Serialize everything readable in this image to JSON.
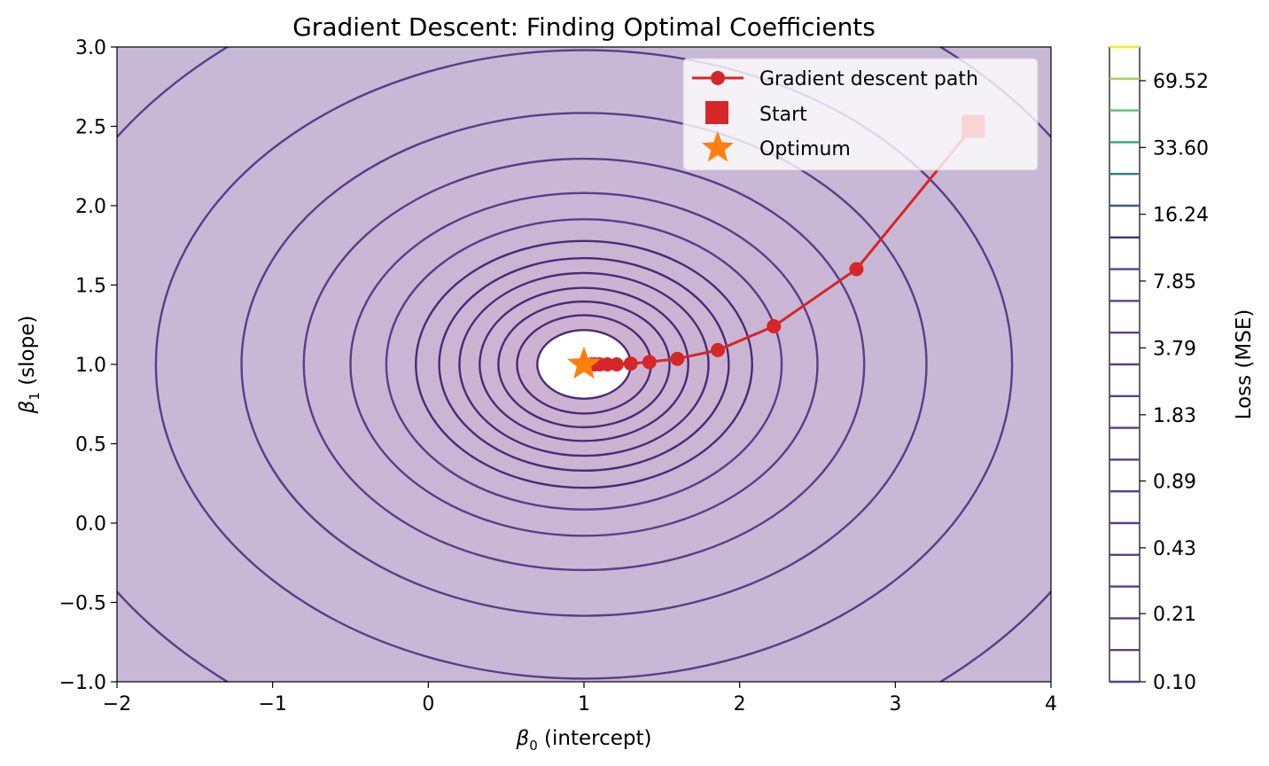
{
  "chart_data": {
    "type": "contour",
    "title": "Gradient Descent: Finding Optimal Coefficients",
    "xlabel": {
      "symbol": "β",
      "sub": "0",
      "rest": " (intercept)"
    },
    "ylabel": {
      "symbol": "β",
      "sub": "1",
      "rest": " (slope)"
    },
    "xlim": [
      -2,
      4
    ],
    "ylim": [
      -1,
      3
    ],
    "xticks": [
      -2,
      -1,
      0,
      1,
      2,
      3,
      4
    ],
    "xtick_labels": [
      "−2",
      "−1",
      "0",
      "1",
      "2",
      "3",
      "4"
    ],
    "yticks": [
      -1.0,
      -0.5,
      0.0,
      0.5,
      1.0,
      1.5,
      2.0,
      2.5,
      3.0
    ],
    "ytick_labels": [
      "−1.0",
      "−0.5",
      "0.0",
      "0.5",
      "1.0",
      "1.5",
      "2.0",
      "2.5",
      "3.0"
    ],
    "loss_surface": {
      "center": [
        1.0,
        1.0
      ],
      "x_semi_axes": [
        0.3,
        0.43,
        0.55,
        0.67,
        0.8,
        0.93,
        1.08,
        1.27,
        1.5,
        1.8,
        2.2,
        2.75,
        3.6
      ],
      "y_semi_axis_ratio": 0.72
    },
    "path": {
      "label": "Gradient descent path",
      "color": "#d62728",
      "x": [
        3.5,
        2.75,
        2.22,
        1.86,
        1.6,
        1.42,
        1.3,
        1.21,
        1.15,
        1.1,
        1.07,
        1.05
      ],
      "y": [
        2.5,
        1.6,
        1.24,
        1.09,
        1.035,
        1.015,
        1.005,
        1.0,
        1.0,
        1.0,
        1.0,
        1.0
      ]
    },
    "start": {
      "label": "Start",
      "x": 3.5,
      "y": 2.5,
      "color": "#d62728"
    },
    "optimum": {
      "label": "Optimum",
      "x": 1.0,
      "y": 1.0,
      "color": "#ff7f0e"
    },
    "colorbar": {
      "label": "Loss (MSE)",
      "tick_labels": [
        "0.10",
        "0.21",
        "0.43",
        "0.89",
        "1.83",
        "3.79",
        "7.85",
        "16.24",
        "33.60",
        "69.52"
      ]
    },
    "legend_position": "top-right"
  }
}
